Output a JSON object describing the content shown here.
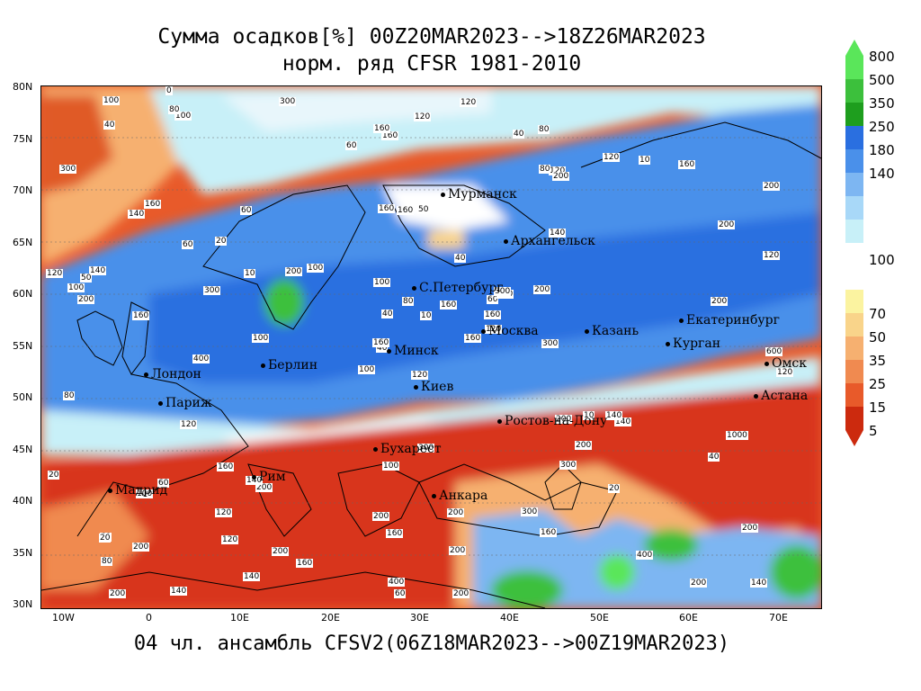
{
  "title": {
    "line1": "Сумма осадков[%] 00Z20MAR2023-->18Z26MAR2023",
    "line2": "норм. ряд CFSR 1981-2010"
  },
  "footer": "04 чл. ансамбль CFSV2(06Z18MAR2023-->00Z19MAR2023)",
  "axes": {
    "lat_labels": [
      "80N",
      "75N",
      "70N",
      "65N",
      "60N",
      "55N",
      "50N",
      "45N",
      "40N",
      "35N",
      "30N"
    ],
    "lon_labels": [
      "10W",
      "0",
      "10E",
      "20E",
      "30E",
      "40E",
      "50E",
      "60E",
      "70E"
    ]
  },
  "cities": [
    {
      "name": "Мурманск"
    },
    {
      "name": "Архангельск"
    },
    {
      "name": "С.Петербург"
    },
    {
      "name": "Москва"
    },
    {
      "name": "Казань"
    },
    {
      "name": "Екатеринбург"
    },
    {
      "name": "Курган"
    },
    {
      "name": "Омск"
    },
    {
      "name": "Астана"
    },
    {
      "name": "Минск"
    },
    {
      "name": "Киев"
    },
    {
      "name": "Берлин"
    },
    {
      "name": "Лондон"
    },
    {
      "name": "Париж"
    },
    {
      "name": "Ростов-на-Дону"
    },
    {
      "name": "Бухарест"
    },
    {
      "name": "Рим"
    },
    {
      "name": "Мадрид"
    },
    {
      "name": "Анкара"
    }
  ],
  "colorbar": {
    "upper": [
      {
        "label": "800",
        "color": "#5ae65a"
      },
      {
        "label": "500",
        "color": "#3cc03c"
      },
      {
        "label": "350",
        "color": "#1e9e1e"
      },
      {
        "label": "250",
        "color": "#2a6fe0"
      },
      {
        "label": "180",
        "color": "#4a90ea"
      },
      {
        "label": "140",
        "color": "#7db6f2"
      },
      {
        "label": "",
        "color": "#a8d8f8"
      },
      {
        "label": "",
        "color": "#c8f0f8"
      }
    ],
    "mid_label": "100",
    "lower": [
      {
        "label": "70",
        "color": "#fbf3a0"
      },
      {
        "label": "50",
        "color": "#f9d48a"
      },
      {
        "label": "35",
        "color": "#f6b070"
      },
      {
        "label": "25",
        "color": "#f08a50"
      },
      {
        "label": "15",
        "color": "#e85a2a"
      },
      {
        "label": "5",
        "color": "#cc2a0e"
      }
    ]
  },
  "contour_labels": [
    "120",
    "140",
    "40",
    "60",
    "60",
    "200",
    "80",
    "50",
    "120",
    "160",
    "100",
    "140",
    "160",
    "200",
    "100",
    "140",
    "140",
    "160",
    "40",
    "60",
    "100",
    "80",
    "120",
    "160",
    "100",
    "140",
    "160",
    "160",
    "200",
    "200",
    "120",
    "160",
    "200",
    "40",
    "60",
    "120",
    "140",
    "200",
    "200",
    "140",
    "120",
    "200",
    "300",
    "300",
    "140",
    "120",
    "160",
    "200",
    "160",
    "120",
    "100",
    "200",
    "300",
    "200",
    "160",
    "120",
    "80",
    "100",
    "200",
    "160",
    "120",
    "100",
    "140",
    "20",
    "10",
    "0",
    "40",
    "60",
    "80",
    "20",
    "100",
    "160",
    "10",
    "10",
    "20",
    "40",
    "60",
    "80",
    "100",
    "200",
    "160",
    "200",
    "300",
    "1000",
    "400",
    "200",
    "300",
    "400",
    "200",
    "300",
    "160",
    "120",
    "200",
    "20",
    "10",
    "40",
    "50",
    "60",
    "80",
    "200",
    "400",
    "300",
    "600",
    "100",
    "120",
    "160",
    "200",
    "300"
  ]
}
